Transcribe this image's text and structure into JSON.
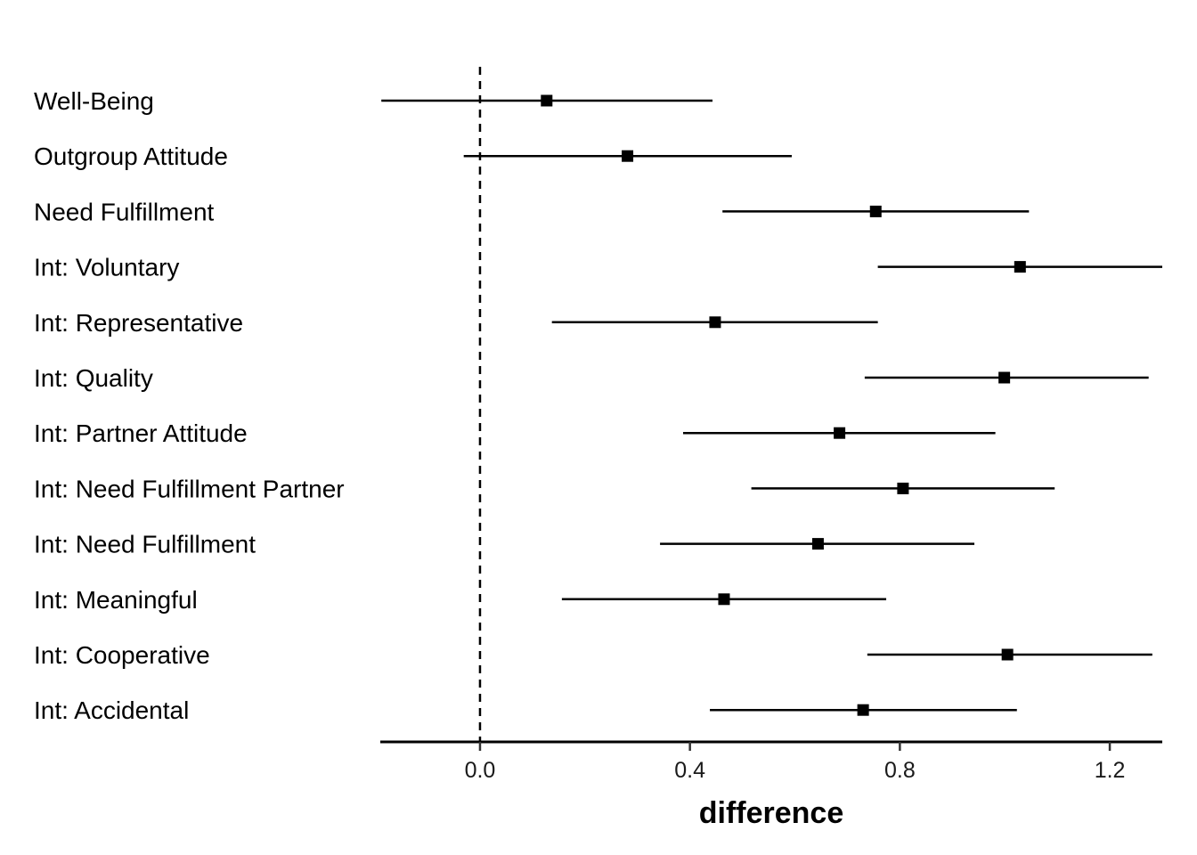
{
  "chart_data": {
    "type": "forest",
    "xlabel": "difference",
    "ylabel": "",
    "xlim": [
      -0.19,
      1.3
    ],
    "x_ticks": [
      0.0,
      0.4,
      0.8,
      1.2
    ],
    "x_tick_labels": [
      "0.0",
      "0.4",
      "0.8",
      "1.2"
    ],
    "reference_line": 0.0,
    "grid": false,
    "point_color": "#000000",
    "categories": [
      "Well-Being",
      "Outgroup Attitude",
      "Need Fulfillment",
      "Int: Voluntary",
      "Int: Representative",
      "Int: Quality",
      "Int: Partner Attitude",
      "Int: Need Fulfillment Partner",
      "Int: Need Fulfillment",
      "Int: Meaningful",
      "Int: Cooperative",
      "Int: Accidental"
    ],
    "estimates": [
      0.127,
      0.281,
      0.754,
      1.029,
      0.448,
      0.999,
      0.685,
      0.806,
      0.644,
      0.465,
      1.005,
      0.73
    ],
    "lower": [
      -0.188,
      -0.031,
      0.462,
      0.758,
      0.137,
      0.733,
      0.387,
      0.517,
      0.343,
      0.156,
      0.738,
      0.438
    ],
    "upper": [
      0.443,
      0.594,
      1.046,
      1.3,
      0.758,
      1.274,
      0.982,
      1.095,
      0.942,
      0.774,
      1.281,
      1.023
    ]
  }
}
